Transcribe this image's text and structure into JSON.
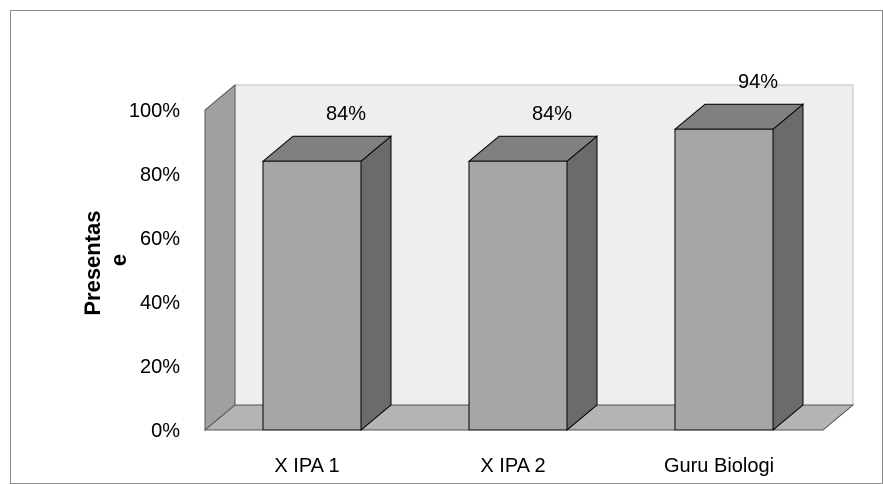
{
  "chart_data": {
    "type": "bar",
    "style": "3d-column",
    "categories": [
      "X IPA 1",
      "X IPA 2",
      "Guru Biologi"
    ],
    "values": [
      84,
      84,
      94
    ],
    "data_labels": [
      "84%",
      "84%",
      "94%"
    ],
    "title": "",
    "xlabel": "",
    "ylabel_lines": [
      "Presentas",
      "e"
    ],
    "ylim": [
      0,
      100
    ],
    "yticks": [
      0,
      20,
      40,
      60,
      80,
      100
    ],
    "ytick_labels": [
      "0%",
      "20%",
      "40%",
      "60%",
      "80%",
      "100%"
    ],
    "grid": false,
    "legend": "none",
    "colors": {
      "bar_front": "#a6a6a6",
      "bar_top": "#808080",
      "bar_side": "#6b6b6b",
      "back_wall": "#eeeeee",
      "side_wall": "#a0a0a0",
      "floor": "#b4b4b4",
      "outline": "#000000"
    }
  }
}
